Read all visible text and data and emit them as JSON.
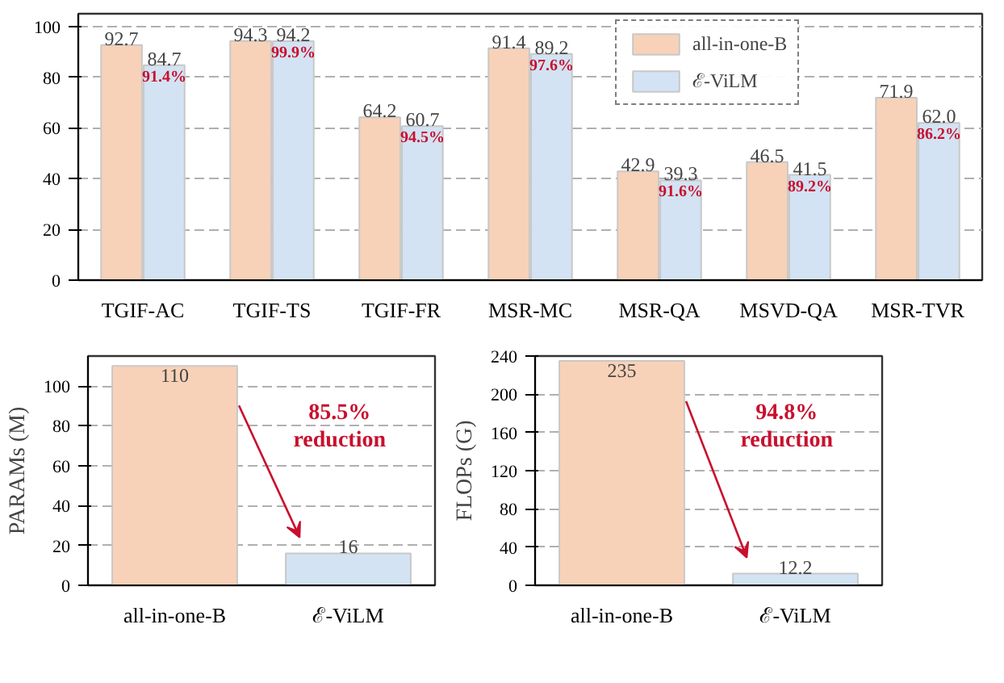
{
  "chart_data": [
    {
      "type": "bar",
      "categories": [
        "TGIF-AC",
        "TGIF-TS",
        "TGIF-FR",
        "MSR-MC",
        "MSR-QA",
        "MSVD-QA",
        "MSR-TVR"
      ],
      "series": [
        {
          "name": "all-in-one-B",
          "color": "#f8d2b8",
          "values": [
            92.7,
            94.3,
            64.2,
            91.4,
            42.9,
            46.5,
            71.9
          ],
          "value_labels": [
            "92.7",
            "94.3",
            "64.2",
            "91.4",
            "42.9",
            "46.5",
            "71.9"
          ]
        },
        {
          "name": "ℰ-ViLM",
          "color": "#d3e3f3",
          "values": [
            84.7,
            94.2,
            60.7,
            89.2,
            39.3,
            41.5,
            62.0
          ],
          "value_labels": [
            "84.7",
            "94.2",
            "60.7",
            "89.2",
            "39.3",
            "41.5",
            "62.0"
          ]
        }
      ],
      "ylim": [
        0,
        105
      ],
      "yticks": [
        0,
        20,
        40,
        60,
        80,
        100
      ],
      "grid": "y",
      "legend": "top right",
      "annotations": [
        {
          "text": "91.4%",
          "x": "TGIF-AC",
          "y": 84.7
        },
        {
          "text": "99.9%",
          "x": "TGIF-TS",
          "y": 94.2
        },
        {
          "text": "94.5%",
          "x": "TGIF-FR",
          "y": 60.7
        },
        {
          "text": "97.6%",
          "x": "MSR-MC",
          "y": 89.2
        },
        {
          "text": "91.6%",
          "x": "MSR-QA",
          "y": 39.3
        },
        {
          "text": "89.2%",
          "x": "MSVD-QA",
          "y": 41.5
        },
        {
          "text": "86.2%",
          "x": "MSR-TVR",
          "y": 62.0
        }
      ]
    },
    {
      "type": "bar",
      "categories": [
        "all-in-one-B",
        "ℰ-ViLM"
      ],
      "values": [
        110,
        16
      ],
      "colors": [
        "#f8d2b8",
        "#d3e3f3"
      ],
      "ylabel": "PARAMs (M)",
      "ylim": [
        0,
        115
      ],
      "yticks": [
        0,
        20,
        40,
        60,
        80,
        100
      ],
      "grid": "y",
      "data_labels": true,
      "annotations": [
        "85.5%\nreduction"
      ]
    },
    {
      "type": "bar",
      "categories": [
        "all-in-one-B",
        "ℰ-ViLM"
      ],
      "values": [
        235,
        12.2
      ],
      "colors": [
        "#f8d2b8",
        "#d3e3f3"
      ],
      "ylabel": "FLOPs (G)",
      "ylim": [
        0,
        240
      ],
      "yticks": [
        0,
        40,
        80,
        120,
        160,
        200,
        240
      ],
      "grid": "y",
      "data_labels": true,
      "annotations": [
        "94.8%\nreduction"
      ]
    }
  ]
}
